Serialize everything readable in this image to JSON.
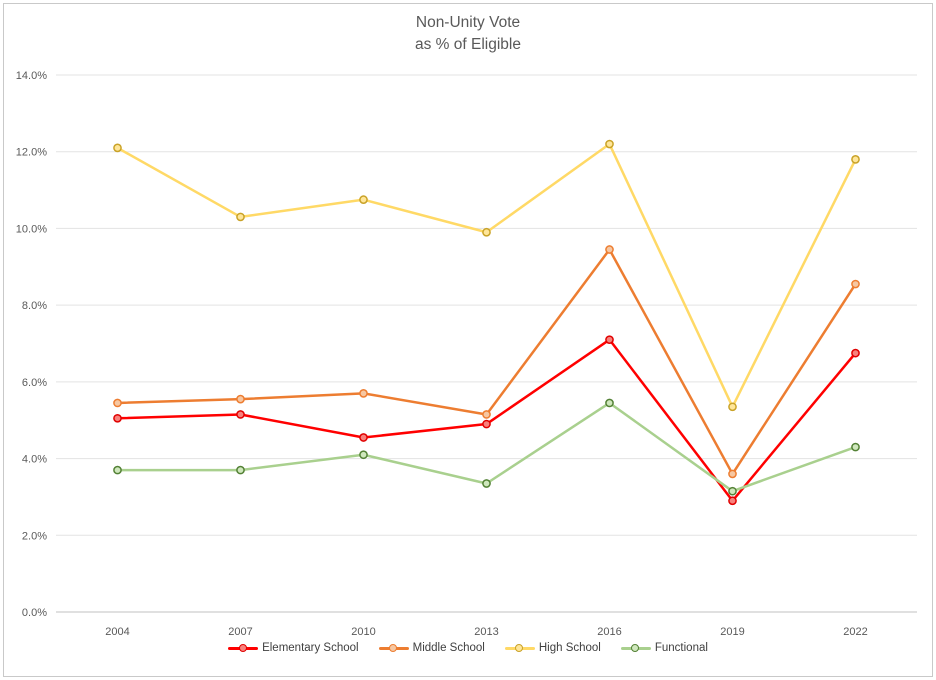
{
  "window": {
    "background": "#ffffff",
    "border_color": "#c9c9c9"
  },
  "chart_data": {
    "type": "line",
    "title_lines": [
      "Non-Unity Vote",
      "as % of Eligible"
    ],
    "title": "Non-Unity Vote as % of Eligible",
    "categories": [
      "2004",
      "2007",
      "2010",
      "2013",
      "2016",
      "2019",
      "2022"
    ],
    "series": [
      {
        "name": "Elementary School",
        "line_color": "#ff0000",
        "marker_fill": "#f8817c",
        "marker_border": "#e00000",
        "values": [
          5.05,
          5.15,
          4.55,
          4.9,
          7.1,
          2.9,
          6.75
        ]
      },
      {
        "name": "Middle School",
        "line_color": "#ed7d31",
        "marker_fill": "#f6c7a2",
        "marker_border": "#ed7d31",
        "values": [
          5.45,
          5.55,
          5.7,
          5.15,
          9.45,
          3.6,
          8.55
        ]
      },
      {
        "name": "High School",
        "line_color": "#ffd966",
        "marker_fill": "#ffe699",
        "marker_border": "#c9a227",
        "values": [
          12.1,
          10.3,
          10.75,
          9.9,
          12.2,
          5.35,
          11.8
        ]
      },
      {
        "name": "Functional",
        "line_color": "#a9d08e",
        "marker_fill": "#cfe7bd",
        "marker_border": "#538135",
        "values": [
          3.7,
          3.7,
          4.1,
          3.35,
          5.45,
          3.15,
          4.3
        ]
      }
    ],
    "ylim": [
      0,
      14
    ],
    "ytick_interval": 2,
    "ytick_labels": [
      "0.0%",
      "2.0%",
      "4.0%",
      "6.0%",
      "8.0%",
      "10.0%",
      "12.0%",
      "14.0%"
    ],
    "grid": true,
    "gridline_color": "#e3e3e3",
    "baseline_color": "#c0c0c0",
    "axis_text_color": "#595959",
    "legend_position": "bottom"
  }
}
